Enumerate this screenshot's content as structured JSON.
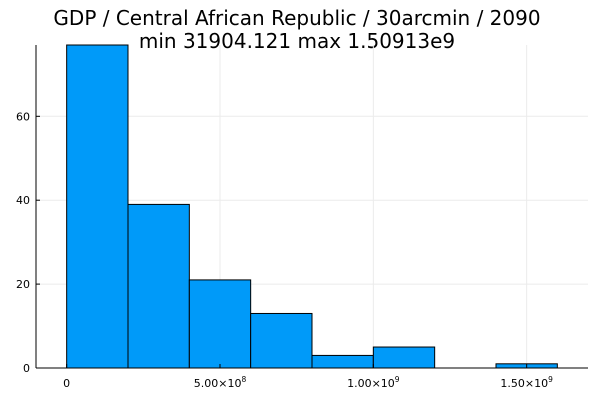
{
  "chart_data": {
    "type": "bar",
    "title_lines": [
      "GDP / Central African Republic / 30arcmin / 2090",
      "min 31904.121  max 1.50913e9"
    ],
    "xlabel": "",
    "ylabel": "",
    "bins": [
      {
        "x0": 0,
        "x1": 200000000,
        "count": 77
      },
      {
        "x0": 200000000,
        "x1": 400000000,
        "count": 39
      },
      {
        "x0": 400000000,
        "x1": 600000000,
        "count": 21
      },
      {
        "x0": 600000000,
        "x1": 800000000,
        "count": 13
      },
      {
        "x0": 800000000,
        "x1": 1000000000,
        "count": 3
      },
      {
        "x0": 1000000000,
        "x1": 1200000000,
        "count": 5
      },
      {
        "x0": 1200000000,
        "x1": 1400000000,
        "count": 0
      },
      {
        "x0": 1400000000,
        "x1": 1600000000,
        "count": 1
      }
    ],
    "xlim": [
      -100000000,
      1700000000
    ],
    "ylim": [
      0,
      77
    ],
    "x_ticks": [
      {
        "value": 0,
        "mantissa": "0",
        "exponent": ""
      },
      {
        "value": 500000000,
        "mantissa": "5.00×10",
        "exponent": "8"
      },
      {
        "value": 1000000000,
        "mantissa": "1.00×10",
        "exponent": "9"
      },
      {
        "value": 1500000000,
        "mantissa": "1.50×10",
        "exponent": "9"
      }
    ],
    "y_ticks": [
      {
        "value": 0,
        "label": "0"
      },
      {
        "value": 20,
        "label": "20"
      },
      {
        "value": 40,
        "label": "40"
      },
      {
        "value": 60,
        "label": "60"
      }
    ],
    "grid": true,
    "legend": "none",
    "bar_color": "#009AF9",
    "bar_edge_color": "#000000",
    "grid_color": "#EBEBEB",
    "axis_color": "#000000"
  }
}
